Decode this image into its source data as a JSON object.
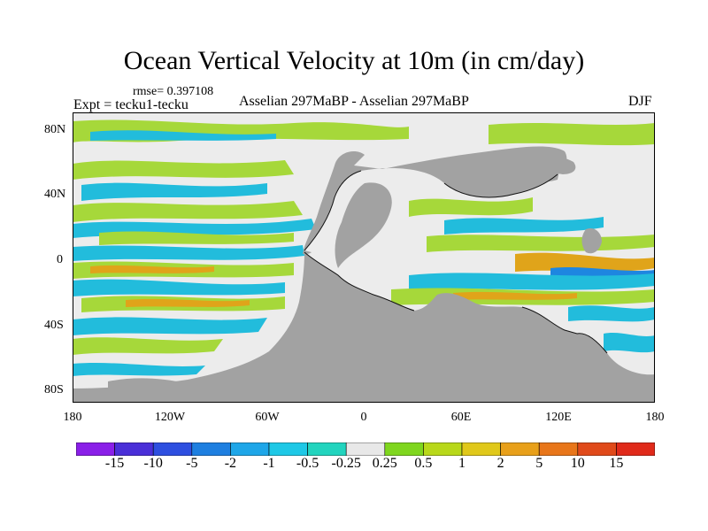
{
  "title": "Ocean Vertical Velocity at 10m (in cm/day)",
  "rmse": "rmse= 0.397108",
  "expt": "Expt = tecku1-tecku",
  "center_label": "Asselian 297MaBP - Asselian 297MaBP",
  "season": "DJF",
  "lat_ticks": [
    "80N",
    "40N",
    "0",
    "40S",
    "80S"
  ],
  "lon_ticks": [
    "180",
    "120W",
    "60W",
    "0",
    "60E",
    "120E",
    "180"
  ],
  "colorbar": {
    "labels": [
      "-15",
      "-10",
      "-5",
      "-2",
      "-1",
      "-0.5",
      "-0.25",
      "0.25",
      "0.5",
      "1",
      "2",
      "5",
      "10",
      "15"
    ],
    "colors": [
      "#8a1fe8",
      "#4a2fd8",
      "#2e4fe0",
      "#1e7fe0",
      "#1ea6e8",
      "#1ec8e6",
      "#22d4be",
      "#e8e8e8",
      "#7fd61e",
      "#b8d81a",
      "#e0c81a",
      "#e8a01a",
      "#e8761a",
      "#e04a1a",
      "#e02a1a"
    ]
  },
  "map_colors": {
    "land": "#a2a2a2",
    "ocean_neutral": "#ececec",
    "upwelling": "#a6d83a",
    "strong_upwelling": "#e0a41a",
    "downwelling": "#22bcdc",
    "strong_downwelling": "#1e86e0",
    "coast": "#111111"
  }
}
